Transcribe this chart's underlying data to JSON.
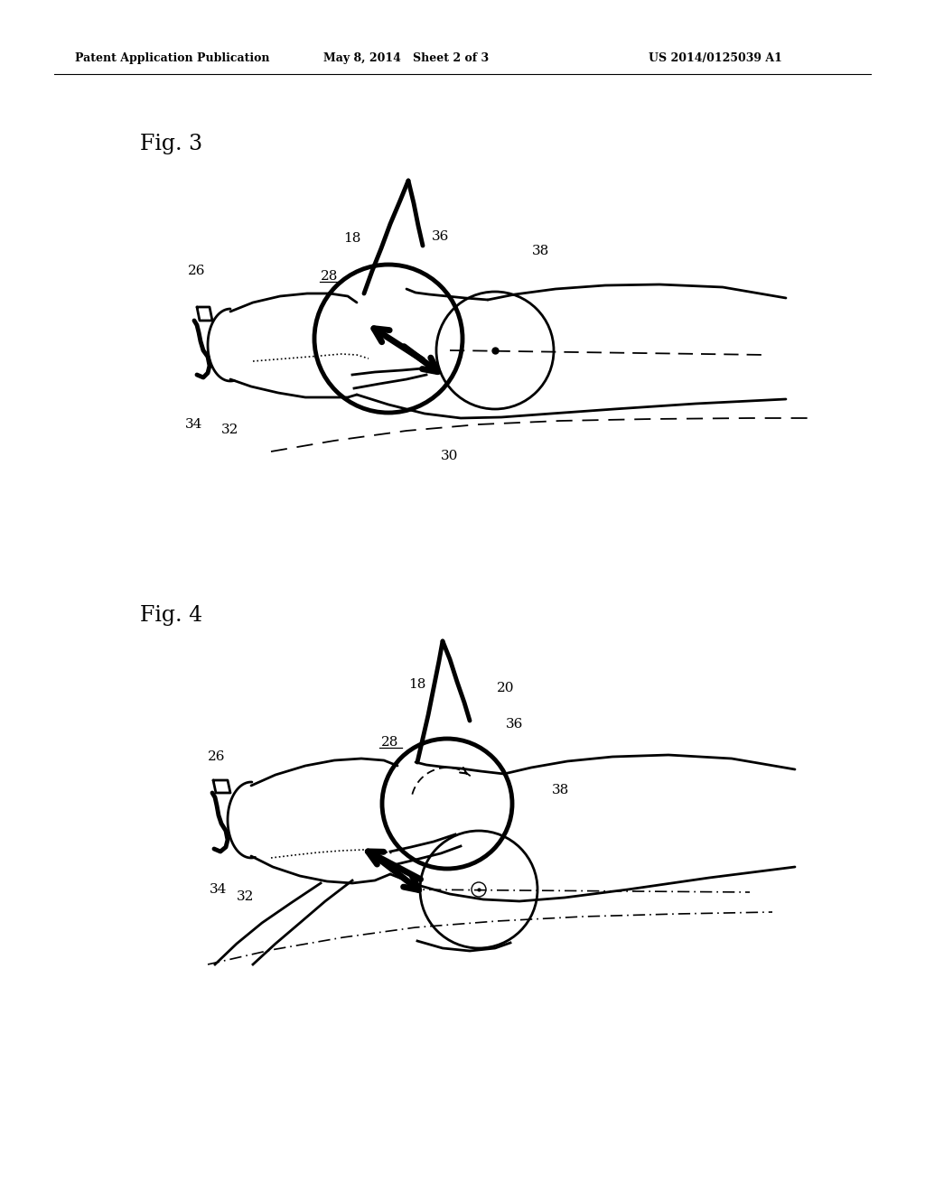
{
  "header_left": "Patent Application Publication",
  "header_center": "May 8, 2014   Sheet 2 of 3",
  "header_right": "US 2014/0125039 A1",
  "fig3_label": "Fig. 3",
  "fig4_label": "Fig. 4",
  "bg": "#ffffff"
}
